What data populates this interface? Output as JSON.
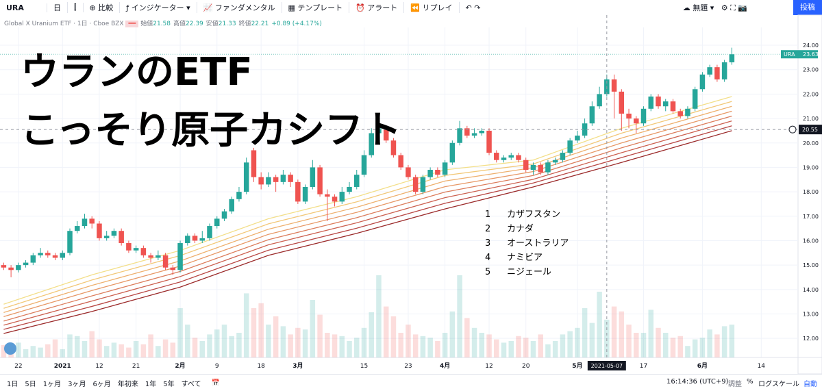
{
  "toolbar": {
    "symbol": "URA",
    "interval": "日",
    "compare": "比較",
    "indicators": "インジケーター",
    "fundamentals": "ファンダメンタル",
    "templates": "テンプレート",
    "alert": "アラート",
    "replay": "リプレイ",
    "layout_name": "無題",
    "publish": "投稿"
  },
  "legend": {
    "title": "Global X Uranium ETF · 1日 · Cboe BZX",
    "ohlc": [
      {
        "label": "始値",
        "value": 21.58
      },
      {
        "label": "高値",
        "value": 22.39
      },
      {
        "label": "安値",
        "value": 21.33
      },
      {
        "label": "終値",
        "value": 22.21
      }
    ],
    "change": "+0.89 (+4.17%)"
  },
  "overlay": {
    "lines": [
      "ウランのETF",
      "こっそり原子カシフト"
    ]
  },
  "notes": [
    {
      "num": 1,
      "text": "カザフスタン"
    },
    {
      "num": 2,
      "text": "カナダ"
    },
    {
      "num": 3,
      "text": "オーストラリア"
    },
    {
      "num": 4,
      "text": "ナミビア"
    },
    {
      "num": 5,
      "text": "ニジェール"
    }
  ],
  "chart_data": {
    "type": "candlestick",
    "open": [
      15.0,
      14.9,
      14.8,
      15.0,
      15.1,
      15.4,
      15.5,
      15.4,
      15.3,
      15.5,
      16.4,
      16.6,
      16.9,
      16.7,
      16.1,
      16.2,
      16.4,
      15.9,
      15.6,
      15.7,
      15.4,
      15.3,
      15.4,
      14.9,
      14.8,
      15.9,
      16.2,
      16.0,
      16.1,
      16.6,
      16.9,
      17.2,
      17.7,
      18.0,
      19.7,
      18.6,
      18.3,
      18.6,
      18.4,
      18.7,
      18.4,
      17.6,
      18.2,
      19.0,
      17.9,
      17.8,
      17.6,
      18.0,
      18.2,
      18.7,
      19.5,
      20.4,
      20.6,
      20.1,
      19.5,
      19.0,
      18.6,
      18.0,
      18.6,
      18.9,
      18.7,
      19.2,
      20.0,
      20.6,
      20.3,
      20.4,
      20.5,
      19.6,
      19.3,
      19.4,
      19.5,
      19.3,
      18.9,
      19.1,
      18.8,
      19.2,
      19.3,
      19.6,
      20.1,
      20.3,
      20.8,
      21.5,
      22.0,
      22.6,
      22.1,
      21.2,
      21.0,
      20.8,
      21.4,
      21.9,
      21.5,
      21.7,
      21.3,
      21.1,
      21.4,
      22.2,
      22.8,
      23.1,
      22.6,
      23.3
    ],
    "high": [
      15.1,
      15.0,
      15.1,
      15.2,
      15.5,
      15.7,
      15.6,
      15.5,
      15.6,
      16.5,
      16.8,
      17.1,
      17.0,
      16.8,
      16.4,
      16.5,
      16.5,
      16.0,
      15.8,
      15.8,
      15.5,
      15.6,
      15.5,
      15.0,
      16.0,
      16.3,
      16.3,
      16.4,
      16.7,
      17.0,
      17.3,
      17.8,
      18.2,
      19.4,
      19.8,
      18.8,
      18.8,
      18.7,
      18.9,
      18.8,
      18.5,
      18.3,
      19.3,
      19.1,
      18.1,
      17.9,
      18.2,
      18.4,
      18.9,
      19.7,
      20.6,
      20.9,
      20.7,
      20.2,
      19.6,
      19.1,
      18.7,
      18.7,
      19.0,
      19.0,
      19.3,
      20.1,
      20.9,
      20.7,
      20.6,
      20.6,
      20.6,
      19.7,
      19.5,
      19.6,
      19.6,
      19.4,
      19.2,
      19.2,
      19.3,
      19.4,
      19.7,
      20.2,
      20.5,
      21.0,
      21.7,
      22.3,
      22.8,
      22.8,
      22.2,
      21.4,
      21.1,
      21.5,
      22.0,
      22.0,
      21.8,
      21.8,
      21.4,
      21.5,
      22.3,
      22.9,
      23.2,
      23.2,
      23.4,
      23.9
    ],
    "low": [
      14.8,
      14.5,
      14.7,
      14.9,
      15.0,
      15.3,
      15.3,
      15.2,
      15.2,
      15.4,
      16.3,
      16.5,
      16.5,
      16.0,
      16.0,
      16.1,
      15.8,
      15.5,
      15.5,
      15.3,
      15.1,
      15.2,
      14.8,
      14.6,
      14.7,
      15.8,
      15.9,
      15.9,
      16.0,
      16.5,
      16.8,
      17.1,
      17.6,
      17.9,
      18.4,
      18.1,
      18.2,
      18.0,
      18.3,
      18.2,
      17.5,
      17.5,
      18.1,
      17.8,
      16.8,
      17.4,
      17.5,
      17.9,
      18.1,
      18.6,
      19.4,
      20.3,
      20.0,
      19.4,
      18.9,
      18.5,
      17.9,
      17.9,
      18.5,
      18.6,
      18.6,
      19.1,
      19.9,
      20.2,
      20.2,
      20.3,
      19.5,
      19.2,
      19.2,
      19.3,
      19.2,
      18.8,
      18.7,
      18.7,
      18.7,
      19.1,
      19.2,
      19.5,
      20.0,
      20.2,
      20.7,
      21.4,
      21.9,
      21.0,
      20.5,
      20.6,
      20.4,
      20.7,
      21.3,
      21.4,
      21.3,
      21.2,
      21.0,
      21.0,
      21.3,
      22.1,
      22.7,
      22.5,
      22.5,
      23.2
    ],
    "close": [
      14.9,
      14.8,
      15.0,
      15.1,
      15.4,
      15.5,
      15.4,
      15.3,
      15.5,
      16.4,
      16.6,
      16.9,
      16.7,
      16.1,
      16.2,
      16.4,
      15.9,
      15.6,
      15.7,
      15.4,
      15.3,
      15.4,
      14.9,
      14.8,
      15.9,
      16.2,
      16.0,
      16.1,
      16.6,
      16.9,
      17.2,
      17.7,
      18.0,
      19.2,
      18.6,
      18.3,
      18.6,
      18.4,
      18.7,
      18.4,
      17.6,
      18.2,
      19.0,
      17.9,
      17.8,
      17.6,
      18.0,
      18.2,
      18.7,
      19.5,
      20.4,
      20.6,
      20.1,
      19.5,
      19.0,
      18.6,
      18.0,
      18.6,
      18.9,
      18.7,
      19.2,
      20.0,
      20.6,
      20.3,
      20.4,
      20.5,
      19.6,
      19.3,
      19.4,
      19.5,
      19.3,
      18.9,
      19.1,
      18.8,
      19.2,
      19.3,
      19.6,
      20.1,
      20.3,
      20.8,
      21.5,
      22.0,
      22.6,
      22.1,
      21.2,
      21.0,
      20.8,
      21.4,
      21.9,
      21.5,
      21.7,
      21.3,
      21.1,
      21.4,
      22.2,
      22.8,
      23.1,
      22.6,
      23.3,
      23.63
    ],
    "volume": [
      15,
      12,
      18,
      10,
      14,
      12,
      16,
      22,
      10,
      28,
      26,
      20,
      32,
      22,
      14,
      18,
      16,
      12,
      20,
      16,
      28,
      14,
      22,
      18,
      60,
      40,
      24,
      20,
      28,
      34,
      40,
      26,
      30,
      78,
      60,
      66,
      40,
      50,
      38,
      28,
      36,
      34,
      70,
      52,
      30,
      28,
      26,
      20,
      24,
      36,
      55,
      100,
      62,
      50,
      30,
      40,
      28,
      26,
      24,
      20,
      30,
      56,
      100,
      48,
      36,
      30,
      28,
      22,
      18,
      20,
      26,
      24,
      20,
      28,
      16,
      20,
      28,
      32,
      36,
      60,
      42,
      80,
      46,
      62,
      56,
      40,
      30,
      30,
      58,
      36,
      30,
      24,
      26,
      14,
      22,
      24,
      34,
      28,
      38,
      40
    ],
    "up_color": "#26a69a",
    "down_color": "#ef5350",
    "ribbon_x": [
      0,
      12,
      24,
      36,
      48,
      60,
      72,
      84,
      99
    ],
    "ribbon": [
      {
        "color": "#f3df8a",
        "values": [
          13.4,
          14.6,
          15.6,
          16.9,
          17.8,
          18.9,
          19.3,
          20.6,
          21.9
        ]
      },
      {
        "color": "#f2c878",
        "values": [
          13.23,
          14.39,
          15.39,
          16.69,
          17.59,
          18.67,
          19.14,
          20.4,
          21.7
        ]
      },
      {
        "color": "#eeb06e",
        "values": [
          13.06,
          14.17,
          15.17,
          16.47,
          17.37,
          18.44,
          18.99,
          20.2,
          21.5
        ]
      },
      {
        "color": "#e79866",
        "values": [
          12.89,
          13.96,
          14.96,
          16.26,
          17.16,
          18.21,
          18.83,
          20.0,
          21.3
        ]
      },
      {
        "color": "#dc7d5c",
        "values": [
          12.71,
          13.74,
          14.74,
          16.04,
          16.94,
          17.99,
          18.67,
          19.8,
          21.1
        ]
      },
      {
        "color": "#cc6150",
        "values": [
          12.54,
          13.53,
          14.53,
          15.83,
          16.73,
          17.76,
          18.51,
          19.6,
          20.9
        ]
      },
      {
        "color": "#b84744",
        "values": [
          12.37,
          13.31,
          14.31,
          15.61,
          16.51,
          17.53,
          18.36,
          19.4,
          20.7
        ]
      },
      {
        "color": "#9b2a2a",
        "values": [
          12.2,
          13.1,
          14.1,
          15.4,
          16.3,
          17.3,
          18.2,
          19.2,
          20.5
        ]
      }
    ],
    "xlim": [
      -0.5,
      108
    ],
    "xticks": [
      {
        "value": 2,
        "label": "22"
      },
      {
        "value": 8,
        "label": "2021"
      },
      {
        "value": 13,
        "label": "12"
      },
      {
        "value": 18,
        "label": "21"
      },
      {
        "value": 24,
        "label": "2月"
      },
      {
        "value": 29,
        "label": "9"
      },
      {
        "value": 35,
        "label": "18"
      },
      {
        "value": 40,
        "label": "3月"
      },
      {
        "value": 49,
        "label": "15"
      },
      {
        "value": 55,
        "label": "23"
      },
      {
        "value": 60,
        "label": "4月"
      },
      {
        "value": 66,
        "label": "12"
      },
      {
        "value": 71,
        "label": "20"
      },
      {
        "value": 78,
        "label": "5月"
      },
      {
        "value": 87,
        "label": "17"
      },
      {
        "value": 95,
        "label": "6月"
      },
      {
        "value": 103,
        "label": "14"
      }
    ],
    "ylim": [
      11.22,
      24.73
    ],
    "yticks": [
      {
        "value": 12,
        "label": "12.00"
      },
      {
        "value": 13,
        "label": "13.00"
      },
      {
        "value": 14,
        "label": "14.00"
      },
      {
        "value": 15,
        "label": "15.00"
      },
      {
        "value": 16,
        "label": "16.00"
      },
      {
        "value": 17,
        "label": "17.00"
      },
      {
        "value": 18,
        "label": "18.00"
      },
      {
        "value": 19,
        "label": "19.00"
      },
      {
        "value": 20,
        "label": "20.00"
      },
      {
        "value": 21,
        "label": "21.00"
      },
      {
        "value": 22,
        "label": "22.00"
      },
      {
        "value": 23,
        "label": "23.00"
      },
      {
        "value": 24,
        "label": "24.00"
      }
    ],
    "last": {
      "name": "URA",
      "value": 23.63
    },
    "crosshair": {
      "x": {
        "value": 82,
        "label": "2021-05-07"
      },
      "y": 20.55
    }
  },
  "bottombar": {
    "ranges": [
      "1日",
      "5日",
      "1ヶ月",
      "3ヶ月",
      "6ヶ月",
      "年初来",
      "1年",
      "5年",
      "すべて"
    ],
    "time": "16:14:36 (UTC+9)",
    "adjust": "調整",
    "percent": "%",
    "log": "ログスケール",
    "auto": "自動"
  }
}
